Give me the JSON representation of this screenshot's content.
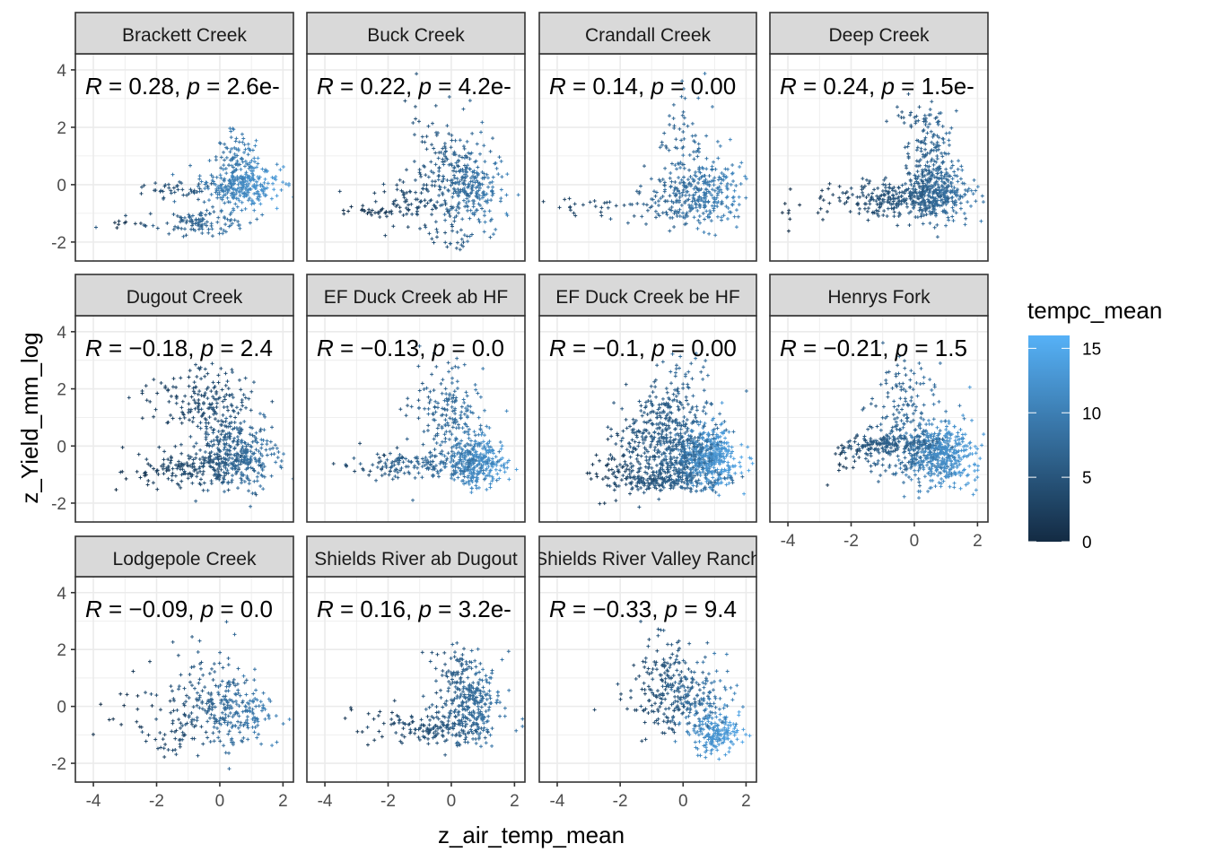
{
  "chart_data": {
    "type": "scatter",
    "faceted": true,
    "xlabel": "z_air_temp_mean",
    "ylabel": "z_Yield_mm_log",
    "xlim": [
      -4.57,
      2.33
    ],
    "ylim": [
      -2.66,
      4.56
    ],
    "x_ticks": [
      -4,
      -2,
      0,
      2
    ],
    "x_tick_labels": [
      "-4",
      "-2",
      "0",
      "2"
    ],
    "y_ticks": [
      -2,
      0,
      2,
      4
    ],
    "y_tick_labels": [
      "-2",
      "0",
      "2",
      "4"
    ],
    "grid": true,
    "color": {
      "legend_title": "tempc_mean",
      "range": [
        0,
        16
      ],
      "ticks": [
        0,
        5,
        10,
        15
      ],
      "tick_labels": [
        "0",
        "5",
        "10",
        "15"
      ],
      "low_color": "#132B43",
      "high_color": "#56B1F7",
      "legend_position": "right"
    },
    "panels": [
      {
        "title": "Brackett Creek",
        "annotation": {
          "r": "0.28",
          "p": "2.6e-"
        },
        "clusters": [
          {
            "n": 260,
            "cx": 0.6,
            "cy": -0.05,
            "sx": 0.6,
            "sy": 0.35,
            "t": [
              8,
              14
            ]
          },
          {
            "n": 90,
            "cx": 0.5,
            "cy": 0.9,
            "sx": 0.4,
            "sy": 0.5,
            "t": [
              7,
              12
            ]
          },
          {
            "n": 110,
            "cx": -0.7,
            "cy": -1.3,
            "sx": 0.8,
            "sy": 0.22,
            "t": [
              4,
              10
            ]
          },
          {
            "n": 40,
            "cx": -1.6,
            "cy": -0.2,
            "sx": 0.8,
            "sy": 0.15,
            "t": [
              2,
              7
            ]
          },
          {
            "n": 8,
            "cx": -2.9,
            "cy": -1.4,
            "sx": 0.3,
            "sy": 0.1,
            "t": [
              0,
              3
            ]
          }
        ]
      },
      {
        "title": "Buck Creek",
        "annotation": {
          "r": "0.22",
          "p": "4.2e-"
        },
        "clusters": [
          {
            "n": 200,
            "cx": 0.6,
            "cy": -0.2,
            "sx": 0.55,
            "sy": 0.55,
            "t": [
              6,
              11
            ]
          },
          {
            "n": 150,
            "cx": -0.1,
            "cy": 0.7,
            "sx": 0.65,
            "sy": 0.9,
            "t": [
              4,
              9
            ]
          },
          {
            "n": 70,
            "cx": -1.2,
            "cy": -0.6,
            "sx": 0.7,
            "sy": 0.4,
            "t": [
              2,
              6
            ]
          },
          {
            "n": 30,
            "cx": -2.4,
            "cy": -0.95,
            "sx": 0.7,
            "sy": 0.08,
            "t": [
              0,
              4
            ]
          },
          {
            "n": 25,
            "cx": 0.2,
            "cy": -1.8,
            "sx": 0.5,
            "sy": 0.3,
            "t": [
              4,
              8
            ]
          }
        ]
      },
      {
        "title": "Crandall Creek",
        "annotation": {
          "r": "0.14",
          "p": "0.00"
        },
        "clusters": [
          {
            "n": 220,
            "cx": 0.7,
            "cy": -0.3,
            "sx": 0.6,
            "sy": 0.55,
            "t": [
              7,
              12
            ]
          },
          {
            "n": 120,
            "cx": -0.2,
            "cy": -0.5,
            "sx": 0.7,
            "sy": 0.6,
            "t": [
              5,
              10
            ]
          },
          {
            "n": 60,
            "cx": 0.2,
            "cy": 1.6,
            "sx": 0.5,
            "sy": 0.8,
            "t": [
              6,
              10
            ]
          },
          {
            "n": 25,
            "cx": -2.8,
            "cy": -0.7,
            "sx": 0.7,
            "sy": 0.15,
            "t": [
              2,
              6
            ]
          }
        ]
      },
      {
        "title": "Deep Creek",
        "annotation": {
          "r": "0.24",
          "p": "1.5e-"
        },
        "clusters": [
          {
            "n": 320,
            "cx": 0.7,
            "cy": -0.3,
            "sx": 0.5,
            "sy": 0.45,
            "t": [
              5,
              10
            ]
          },
          {
            "n": 130,
            "cx": 0.5,
            "cy": 1.0,
            "sx": 0.35,
            "sy": 0.7,
            "t": [
              5,
              9
            ]
          },
          {
            "n": 200,
            "cx": -0.6,
            "cy": -0.5,
            "sx": 0.7,
            "sy": 0.3,
            "t": [
              3,
              7
            ]
          },
          {
            "n": 30,
            "cx": 0.1,
            "cy": 2.4,
            "sx": 0.5,
            "sy": 0.2,
            "t": [
              4,
              8
            ]
          },
          {
            "n": 25,
            "cx": -2.4,
            "cy": -0.5,
            "sx": 0.6,
            "sy": 0.3,
            "t": [
              1,
              4
            ]
          },
          {
            "n": 8,
            "cx": -3.9,
            "cy": -1.0,
            "sx": 0.3,
            "sy": 0.35,
            "t": [
              0,
              2
            ]
          }
        ]
      },
      {
        "title": "Dugout Creek",
        "annotation": {
          "r": "−0.18",
          "p": "2.4"
        },
        "clusters": [
          {
            "n": 300,
            "cx": 0.6,
            "cy": -0.4,
            "sx": 0.6,
            "sy": 0.55,
            "t": [
              5,
              10
            ]
          },
          {
            "n": 170,
            "cx": -0.6,
            "cy": 1.6,
            "sx": 0.8,
            "sy": 0.55,
            "t": [
              2,
              6
            ]
          },
          {
            "n": 150,
            "cx": -0.9,
            "cy": -0.8,
            "sx": 0.8,
            "sy": 0.3,
            "t": [
              2,
              6
            ]
          },
          {
            "n": 60,
            "cx": 0.3,
            "cy": 0.5,
            "sx": 0.6,
            "sy": 0.5,
            "t": [
              4,
              8
            ]
          },
          {
            "n": 15,
            "cx": -2.5,
            "cy": -1.0,
            "sx": 0.4,
            "sy": 0.3,
            "t": [
              0,
              3
            ]
          }
        ]
      },
      {
        "title": "EF Duck Creek ab HF",
        "annotation": {
          "r": "−0.13",
          "p": "0.0"
        },
        "clusters": [
          {
            "n": 250,
            "cx": 0.8,
            "cy": -0.6,
            "sx": 0.45,
            "sy": 0.4,
            "t": [
              9,
              14
            ]
          },
          {
            "n": 150,
            "cx": -0.7,
            "cy": -0.7,
            "sx": 0.9,
            "sy": 0.25,
            "t": [
              5,
              10
            ]
          },
          {
            "n": 150,
            "cx": -0.2,
            "cy": 1.3,
            "sx": 0.6,
            "sy": 0.7,
            "t": [
              5,
              10
            ]
          },
          {
            "n": 60,
            "cx": 0.5,
            "cy": 0.2,
            "sx": 0.5,
            "sy": 0.5,
            "t": [
              7,
              12
            ]
          },
          {
            "n": 15,
            "cx": -2.4,
            "cy": -0.5,
            "sx": 0.5,
            "sy": 0.3,
            "t": [
              2,
              5
            ]
          }
        ]
      },
      {
        "title": "EF Duck Creek be HF",
        "annotation": {
          "r": "−0.1",
          "p": "0.00"
        },
        "clusters": [
          {
            "n": 450,
            "cx": 0.8,
            "cy": -0.4,
            "sx": 0.5,
            "sy": 0.5,
            "t": [
              9,
              15
            ]
          },
          {
            "n": 350,
            "cx": -0.5,
            "cy": -0.1,
            "sx": 0.8,
            "sy": 0.6,
            "t": [
              4,
              9
            ]
          },
          {
            "n": 150,
            "cx": -0.3,
            "cy": 1.2,
            "sx": 0.7,
            "sy": 0.6,
            "t": [
              4,
              9
            ]
          },
          {
            "n": 200,
            "cx": -0.5,
            "cy": -1.2,
            "sx": 0.8,
            "sy": 0.2,
            "t": [
              3,
              9
            ]
          },
          {
            "n": 40,
            "cx": -2.3,
            "cy": -0.8,
            "sx": 0.5,
            "sy": 0.5,
            "t": [
              1,
              4
            ]
          },
          {
            "n": 20,
            "cx": 0.0,
            "cy": 2.8,
            "sx": 0.6,
            "sy": 0.4,
            "t": [
              5,
              10
            ]
          }
        ]
      },
      {
        "title": "Henrys Fork",
        "annotation": {
          "r": "−0.21",
          "p": "1.5"
        },
        "clusters": [
          {
            "n": 420,
            "cx": 0.8,
            "cy": -0.3,
            "sx": 0.5,
            "sy": 0.55,
            "t": [
              9,
              14
            ]
          },
          {
            "n": 200,
            "cx": -0.3,
            "cy": 0.3,
            "sx": 0.7,
            "sy": 0.8,
            "t": [
              5,
              10
            ]
          },
          {
            "n": 150,
            "cx": -0.8,
            "cy": 0.0,
            "sx": 0.7,
            "sy": 0.15,
            "t": [
              4,
              8
            ]
          },
          {
            "n": 40,
            "cx": -0.4,
            "cy": 2.3,
            "sx": 0.6,
            "sy": 0.5,
            "t": [
              5,
              9
            ]
          },
          {
            "n": 20,
            "cx": -2.1,
            "cy": -0.4,
            "sx": 0.4,
            "sy": 0.4,
            "t": [
              1,
              4
            ]
          }
        ]
      },
      {
        "title": "Lodgepole Creek",
        "annotation": {
          "r": "−0.09",
          "p": "0.0"
        },
        "clusters": [
          {
            "n": 180,
            "cx": 0.5,
            "cy": -0.2,
            "sx": 0.6,
            "sy": 0.6,
            "t": [
              6,
              11
            ]
          },
          {
            "n": 110,
            "cx": -0.5,
            "cy": 0.3,
            "sx": 0.7,
            "sy": 0.9,
            "t": [
              4,
              8
            ]
          },
          {
            "n": 50,
            "cx": -1.3,
            "cy": -0.9,
            "sx": 0.6,
            "sy": 0.6,
            "t": [
              2,
              6
            ]
          },
          {
            "n": 15,
            "cx": -3.0,
            "cy": 0.0,
            "sx": 0.5,
            "sy": 0.6,
            "t": [
              0,
              3
            ]
          }
        ]
      },
      {
        "title": "Shields River ab Dugout",
        "annotation": {
          "r": "0.16",
          "p": "3.2e-"
        },
        "clusters": [
          {
            "n": 260,
            "cx": 0.6,
            "cy": -0.1,
            "sx": 0.5,
            "sy": 0.6,
            "t": [
              5,
              10
            ]
          },
          {
            "n": 120,
            "cx": -0.5,
            "cy": -0.8,
            "sx": 0.7,
            "sy": 0.25,
            "t": [
              3,
              7
            ]
          },
          {
            "n": 80,
            "cx": 0.3,
            "cy": 1.3,
            "sx": 0.4,
            "sy": 0.5,
            "t": [
              4,
              9
            ]
          },
          {
            "n": 20,
            "cx": -2.3,
            "cy": -0.6,
            "sx": 0.6,
            "sy": 0.4,
            "t": [
              1,
              4
            ]
          }
        ]
      },
      {
        "title": "Shields River Valley Ranch",
        "annotation": {
          "r": "−0.33",
          "p": "9.4"
        },
        "clusters": [
          {
            "n": 180,
            "cx": 1.0,
            "cy": -0.9,
            "sx": 0.4,
            "sy": 0.35,
            "t": [
              10,
              15
            ]
          },
          {
            "n": 180,
            "cx": -0.4,
            "cy": 0.9,
            "sx": 0.6,
            "sy": 0.7,
            "t": [
              3,
              8
            ]
          },
          {
            "n": 100,
            "cx": 0.5,
            "cy": 0.2,
            "sx": 0.6,
            "sy": 0.6,
            "t": [
              6,
              11
            ]
          },
          {
            "n": 40,
            "cx": -1.0,
            "cy": -0.3,
            "sx": 0.6,
            "sy": 0.5,
            "t": [
              2,
              6
            ]
          }
        ]
      }
    ]
  }
}
